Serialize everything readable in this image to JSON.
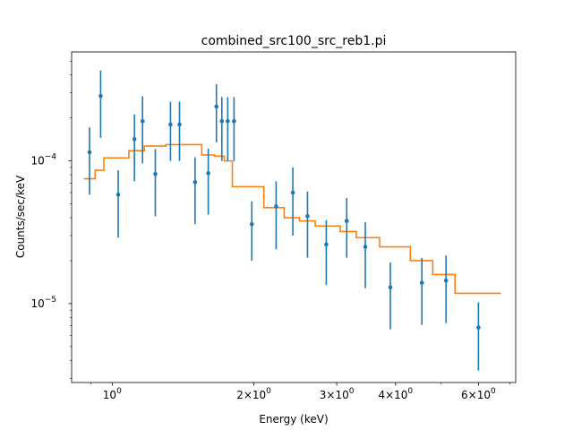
{
  "chart_data": {
    "type": "scatter",
    "title": "combined_src100_src_reb1.pi",
    "xlabel": "Energy (keV)",
    "ylabel": "Counts/sec/keV",
    "xscale": "log",
    "yscale": "log",
    "xlim": [
      0.82,
      7.2
    ],
    "ylim": [
      2.8e-06,
      0.00058
    ],
    "grid": false,
    "x_ticks": [
      {
        "value": 1,
        "label": "10^0",
        "base": "10",
        "exp": "0"
      },
      {
        "value": 2,
        "label": "2×10^0",
        "base": "2×10",
        "exp": "0"
      },
      {
        "value": 3,
        "label": "3×10^0",
        "base": "3×10",
        "exp": "0"
      },
      {
        "value": 4,
        "label": "4×10^0",
        "base": "4×10",
        "exp": "0"
      },
      {
        "value": 6,
        "label": "6×10^0",
        "base": "6×10",
        "exp": "0"
      }
    ],
    "y_ticks": [
      {
        "value": 1e-05,
        "label": "10^-5",
        "base": "10",
        "exp": "−5"
      },
      {
        "value": 0.0001,
        "label": "10^-4",
        "base": "10",
        "exp": "−4"
      }
    ],
    "series": [
      {
        "kind": "errorbar",
        "color": "#1f77b4",
        "points": [
          {
            "x": 0.895,
            "y": 0.000115,
            "ylo": 5.8e-05,
            "yhi": 0.000172
          },
          {
            "x": 0.945,
            "y": 0.000285,
            "ylo": 0.000145,
            "yhi": 0.00043
          },
          {
            "x": 1.03,
            "y": 5.8e-05,
            "ylo": 2.9e-05,
            "yhi": 8.6e-05
          },
          {
            "x": 1.115,
            "y": 0.000142,
            "ylo": 7.2e-05,
            "yhi": 0.000212
          },
          {
            "x": 1.16,
            "y": 0.00019,
            "ylo": 9.6e-05,
            "yhi": 0.000284
          },
          {
            "x": 1.235,
            "y": 8.1e-05,
            "ylo": 4.1e-05,
            "yhi": 0.000121
          },
          {
            "x": 1.33,
            "y": 0.00018,
            "ylo": 0.0001,
            "yhi": 0.00026
          },
          {
            "x": 1.39,
            "y": 0.00018,
            "ylo": 0.0001,
            "yhi": 0.00026
          },
          {
            "x": 1.5,
            "y": 7.1e-05,
            "ylo": 3.6e-05,
            "yhi": 0.000106
          },
          {
            "x": 1.6,
            "y": 8.2e-05,
            "ylo": 4.2e-05,
            "yhi": 0.000122
          },
          {
            "x": 1.665,
            "y": 0.00024,
            "ylo": 0.000135,
            "yhi": 0.000345
          },
          {
            "x": 1.71,
            "y": 0.00019,
            "ylo": 0.0001,
            "yhi": 0.00028
          },
          {
            "x": 1.76,
            "y": 0.00019,
            "ylo": 0.0001,
            "yhi": 0.00028
          },
          {
            "x": 1.815,
            "y": 0.00019,
            "ylo": 0.0001,
            "yhi": 0.00028
          },
          {
            "x": 1.98,
            "y": 3.6e-05,
            "ylo": 2e-05,
            "yhi": 5.2e-05
          },
          {
            "x": 2.23,
            "y": 4.8e-05,
            "ylo": 2.4e-05,
            "yhi": 7.2e-05
          },
          {
            "x": 2.42,
            "y": 6e-05,
            "ylo": 3e-05,
            "yhi": 9e-05
          },
          {
            "x": 2.6,
            "y": 4.1e-05,
            "ylo": 2.1e-05,
            "yhi": 6.1e-05
          },
          {
            "x": 2.85,
            "y": 2.6e-05,
            "ylo": 1.35e-05,
            "yhi": 3.85e-05
          },
          {
            "x": 3.15,
            "y": 3.8e-05,
            "ylo": 2.1e-05,
            "yhi": 5.5e-05
          },
          {
            "x": 3.45,
            "y": 2.5e-05,
            "ylo": 1.28e-05,
            "yhi": 3.72e-05
          },
          {
            "x": 3.9,
            "y": 1.3e-05,
            "ylo": 6.6e-06,
            "yhi": 1.94e-05
          },
          {
            "x": 4.55,
            "y": 1.4e-05,
            "ylo": 7.1e-06,
            "yhi": 2.09e-05
          },
          {
            "x": 5.12,
            "y": 1.45e-05,
            "ylo": 7.3e-06,
            "yhi": 2.17e-05
          },
          {
            "x": 6.0,
            "y": 6.8e-06,
            "ylo": 3.4e-06,
            "yhi": 1.02e-05
          }
        ]
      },
      {
        "kind": "step",
        "color": "#ff7f0e",
        "points": [
          {
            "x": 0.87,
            "y": 7.5e-05
          },
          {
            "x": 0.92,
            "y": 8.6e-05
          },
          {
            "x": 0.96,
            "y": 0.000105
          },
          {
            "x": 1.085,
            "y": 0.000118
          },
          {
            "x": 1.17,
            "y": 0.000127
          },
          {
            "x": 1.3,
            "y": 0.00013
          },
          {
            "x": 1.55,
            "y": 0.00011
          },
          {
            "x": 1.65,
            "y": 0.000108
          },
          {
            "x": 1.73,
            "y": 0.0001
          },
          {
            "x": 1.8,
            "y": 6.6e-05
          },
          {
            "x": 2.1,
            "y": 4.7e-05
          },
          {
            "x": 2.32,
            "y": 4e-05
          },
          {
            "x": 2.5,
            "y": 3.8e-05
          },
          {
            "x": 2.7,
            "y": 3.5e-05
          },
          {
            "x": 3.05,
            "y": 3.2e-05
          },
          {
            "x": 3.3,
            "y": 2.9e-05
          },
          {
            "x": 3.7,
            "y": 2.5e-05
          },
          {
            "x": 4.3,
            "y": 2e-05
          },
          {
            "x": 4.8,
            "y": 1.6e-05
          },
          {
            "x": 5.35,
            "y": 1.18e-05
          },
          {
            "x": 6.7,
            "y": 1.18e-05
          }
        ]
      }
    ]
  }
}
